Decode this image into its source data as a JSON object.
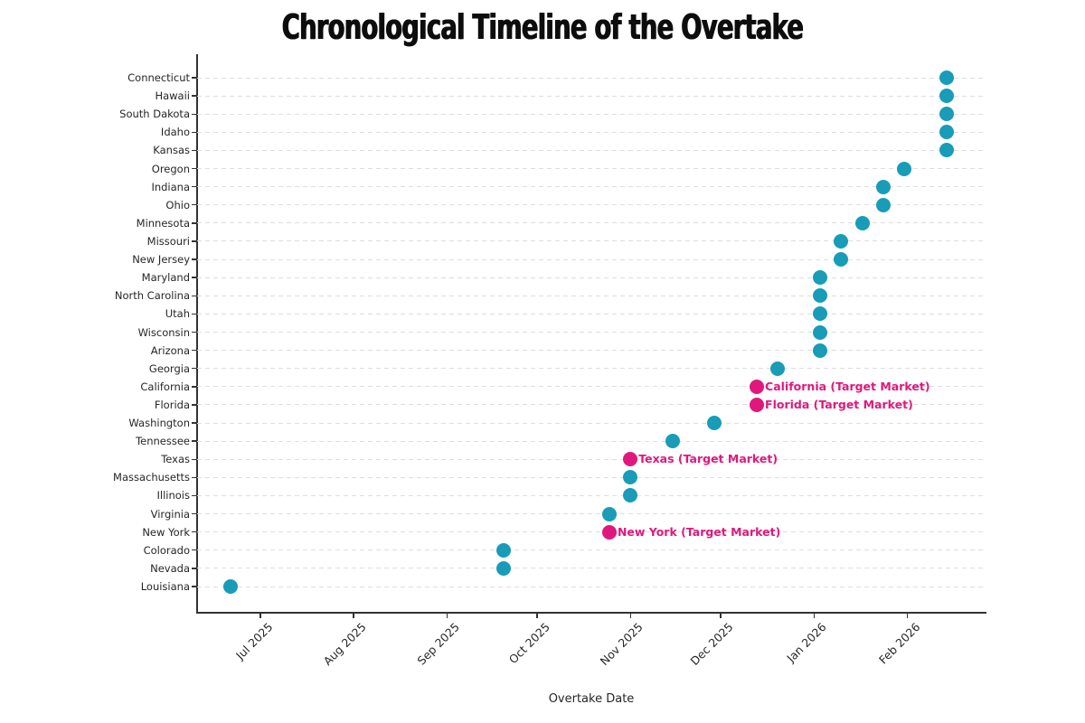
{
  "colors": {
    "default_dot": "#189CB8",
    "target_dot": "#E0187D",
    "target_label": "#E0187D",
    "grid": "#dedede",
    "axis": "#333333",
    "text": "#262626",
    "title": "#0d0d0d"
  },
  "chart_data": {
    "type": "scatter",
    "title": "Chronological Timeline of the Overtake",
    "xlabel": "Overtake Date",
    "ylabel": "",
    "grid": "dashed-horizontal",
    "legend": "none",
    "x_domain": [
      "2025-06-10",
      "2026-02-27"
    ],
    "x_ticks": [
      {
        "label": "Jul 2025",
        "date": "2025-07-01"
      },
      {
        "label": "Aug 2025",
        "date": "2025-08-01"
      },
      {
        "label": "Sep 2025",
        "date": "2025-09-01"
      },
      {
        "label": "Oct 2025",
        "date": "2025-10-01"
      },
      {
        "label": "Nov 2025",
        "date": "2025-11-01"
      },
      {
        "label": "Dec 2025",
        "date": "2025-12-01"
      },
      {
        "label": "Jan 2026",
        "date": "2026-01-01"
      },
      {
        "label": "Feb 2026",
        "date": "2026-02-01"
      }
    ],
    "points": [
      {
        "state": "Connecticut",
        "date": "2026-02-14",
        "target": false
      },
      {
        "state": "Hawaii",
        "date": "2026-02-14",
        "target": false
      },
      {
        "state": "South Dakota",
        "date": "2026-02-14",
        "target": false
      },
      {
        "state": "Idaho",
        "date": "2026-02-14",
        "target": false
      },
      {
        "state": "Kansas",
        "date": "2026-02-14",
        "target": false
      },
      {
        "state": "Oregon",
        "date": "2026-01-31",
        "target": false
      },
      {
        "state": "Indiana",
        "date": "2026-01-24",
        "target": false
      },
      {
        "state": "Ohio",
        "date": "2026-01-24",
        "target": false
      },
      {
        "state": "Minnesota",
        "date": "2026-01-17",
        "target": false
      },
      {
        "state": "Missouri",
        "date": "2026-01-10",
        "target": false
      },
      {
        "state": "New Jersey",
        "date": "2026-01-10",
        "target": false
      },
      {
        "state": "Maryland",
        "date": "2026-01-03",
        "target": false
      },
      {
        "state": "North Carolina",
        "date": "2026-01-03",
        "target": false
      },
      {
        "state": "Utah",
        "date": "2026-01-03",
        "target": false
      },
      {
        "state": "Wisconsin",
        "date": "2026-01-03",
        "target": false
      },
      {
        "state": "Arizona",
        "date": "2026-01-03",
        "target": false
      },
      {
        "state": "Georgia",
        "date": "2025-12-20",
        "target": false
      },
      {
        "state": "California",
        "date": "2025-12-13",
        "target": true,
        "label": "California (Target Market)"
      },
      {
        "state": "Florida",
        "date": "2025-12-13",
        "target": true,
        "label": "Florida (Target Market)"
      },
      {
        "state": "Washington",
        "date": "2025-11-29",
        "target": false
      },
      {
        "state": "Tennessee",
        "date": "2025-11-15",
        "target": false
      },
      {
        "state": "Texas",
        "date": "2025-11-01",
        "target": true,
        "label": "Texas (Target Market)"
      },
      {
        "state": "Massachusetts",
        "date": "2025-11-01",
        "target": false
      },
      {
        "state": "Illinois",
        "date": "2025-11-01",
        "target": false
      },
      {
        "state": "Virginia",
        "date": "2025-10-25",
        "target": false
      },
      {
        "state": "New York",
        "date": "2025-10-25",
        "target": true,
        "label": "New York (Target Market)"
      },
      {
        "state": "Colorado",
        "date": "2025-09-20",
        "target": false
      },
      {
        "state": "Nevada",
        "date": "2025-09-20",
        "target": false
      },
      {
        "state": "Louisiana",
        "date": "2025-06-21",
        "target": false
      }
    ]
  }
}
